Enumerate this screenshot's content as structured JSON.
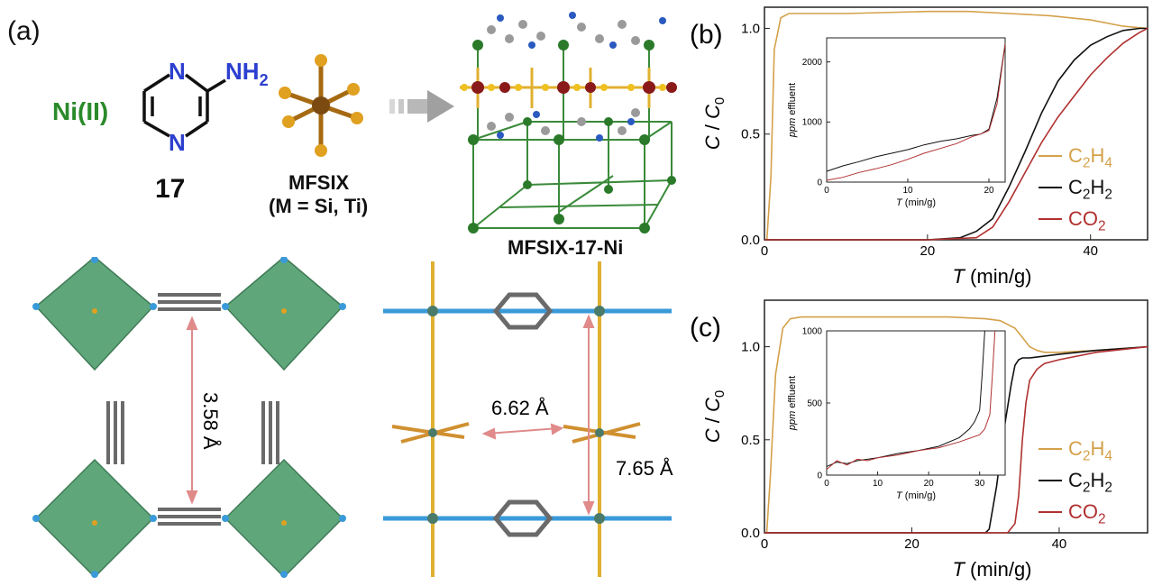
{
  "panels": {
    "a": "(a)",
    "b": "(b)",
    "c": "(c)"
  },
  "scheme": {
    "metal": "Ni(II)",
    "ligand_number": "17",
    "anion_name": "MFSIX",
    "anion_variants": "(M = Si, Ti)",
    "framework_name": "MFSIX-17-Ni",
    "ligand_n_label": "N",
    "ligand_nh2_label": "NH",
    "ligand_nh2_sub": "2"
  },
  "structure_labels": {
    "distance_1": "3.58 Å",
    "distance_2": "6.62 Å",
    "distance_3": "7.65 Å"
  },
  "colors": {
    "c2h4": "#d4a14a",
    "c2h2": "#111111",
    "co2": "#b03030",
    "nickel_green": "#2a8a2a",
    "octahedron": "#5fa77a",
    "node_blue": "#3a9ad9",
    "pink_arrow": "#e08a8a"
  },
  "chart_data": [
    {
      "panel": "(b)",
      "type": "line",
      "xlabel": "T (min/g)",
      "ylabel": "C / C0",
      "xlim": [
        0,
        47
      ],
      "ylim": [
        0,
        1.1
      ],
      "xticks": [
        0,
        20,
        40
      ],
      "yticks": [
        0.0,
        0.5,
        1.0
      ],
      "series": [
        {
          "name": "C2H4",
          "x": [
            0.3,
            0.8,
            1.2,
            2.0,
            3,
            10,
            20,
            25,
            30,
            35,
            40,
            44,
            47
          ],
          "y": [
            0,
            0.3,
            0.9,
            1.05,
            1.07,
            1.07,
            1.08,
            1.08,
            1.07,
            1.06,
            1.04,
            1.01,
            1.0
          ]
        },
        {
          "name": "C2H2",
          "x": [
            0,
            20,
            24,
            26,
            28,
            30,
            32,
            34,
            36,
            38,
            40,
            42,
            44,
            46,
            47
          ],
          "y": [
            0,
            0,
            0.01,
            0.04,
            0.1,
            0.25,
            0.42,
            0.6,
            0.75,
            0.85,
            0.92,
            0.96,
            0.99,
            1.0,
            1.0
          ]
        },
        {
          "name": "CO2",
          "x": [
            0,
            20,
            26,
            28,
            30,
            32,
            34,
            36,
            38,
            40,
            42,
            44,
            46,
            47
          ],
          "y": [
            0,
            0,
            0.01,
            0.06,
            0.18,
            0.32,
            0.46,
            0.58,
            0.68,
            0.78,
            0.86,
            0.93,
            0.98,
            1.0
          ]
        }
      ],
      "inset": {
        "xlabel": "T (min/g)",
        "ylabel": "ppm effluent",
        "xlim": [
          0,
          22
        ],
        "ylim": [
          0,
          2400
        ],
        "xticks": [
          0,
          10,
          20
        ],
        "yticks": [
          0,
          1000,
          2000
        ],
        "series": [
          {
            "name": "C2H2",
            "x": [
              0,
              2,
              4,
              6,
              8,
              10,
              12,
              14,
              16,
              18,
              19,
              20,
              21,
              22
            ],
            "y": [
              180,
              270,
              340,
              420,
              480,
              540,
              620,
              680,
              720,
              780,
              800,
              880,
              1400,
              2300
            ]
          },
          {
            "name": "CO2",
            "x": [
              0,
              2,
              4,
              6,
              8,
              10,
              12,
              14,
              16,
              18,
              19,
              20,
              21,
              22
            ],
            "y": [
              30,
              80,
              160,
              220,
              290,
              380,
              480,
              560,
              640,
              760,
              800,
              860,
              1300,
              2300
            ]
          }
        ]
      }
    },
    {
      "panel": "(c)",
      "type": "line",
      "xlabel": "T (min/g)",
      "ylabel": "C / C0",
      "xlim": [
        0,
        52
      ],
      "ylim": [
        0,
        1.25
      ],
      "xticks": [
        0,
        20,
        40
      ],
      "yticks": [
        0.0,
        0.5,
        1.0
      ],
      "series": [
        {
          "name": "C2H4",
          "x": [
            0.3,
            0.8,
            1.5,
            2.5,
            3.5,
            5,
            15,
            25,
            30,
            32,
            34,
            35,
            36,
            37,
            38,
            40,
            45,
            52
          ],
          "y": [
            0,
            0.3,
            0.85,
            1.1,
            1.15,
            1.16,
            1.16,
            1.16,
            1.15,
            1.14,
            1.1,
            1.05,
            1.0,
            0.98,
            0.97,
            0.97,
            0.98,
            1.0
          ]
        },
        {
          "name": "C2H2",
          "x": [
            0,
            30,
            30.5,
            31.5,
            32.5,
            33.5,
            34,
            34.5,
            35,
            36,
            40,
            45,
            52
          ],
          "y": [
            0,
            0,
            0.02,
            0.25,
            0.55,
            0.8,
            0.9,
            0.93,
            0.94,
            0.94,
            0.96,
            0.98,
            1.0
          ]
        },
        {
          "name": "CO2",
          "x": [
            0,
            33,
            34,
            34.5,
            35,
            35.5,
            36,
            37,
            38,
            40,
            45,
            52
          ],
          "y": [
            0,
            0,
            0.05,
            0.2,
            0.5,
            0.7,
            0.82,
            0.88,
            0.91,
            0.93,
            0.97,
            1.0
          ]
        }
      ],
      "inset": {
        "xlabel": "T (min/g)",
        "ylabel": "ppm effluent",
        "xlim": [
          0,
          35
        ],
        "ylim": [
          0,
          1000
        ],
        "xticks": [
          0,
          10,
          20,
          30
        ],
        "yticks": [
          0,
          500,
          1000
        ],
        "series": [
          {
            "name": "C2H2",
            "x": [
              0,
              2,
              4,
              6,
              8,
              10,
              14,
              18,
              22,
              26,
              28,
              29,
              30,
              30.5,
              31
            ],
            "y": [
              60,
              90,
              80,
              100,
              110,
              120,
              150,
              170,
              200,
              260,
              320,
              370,
              450,
              700,
              1000
            ]
          },
          {
            "name": "CO2",
            "x": [
              0,
              2,
              4,
              6,
              8,
              10,
              14,
              18,
              22,
              26,
              30,
              31,
              32,
              32.5,
              33
            ],
            "y": [
              40,
              100,
              70,
              110,
              100,
              120,
              140,
              170,
              190,
              230,
              280,
              320,
              420,
              700,
              1000
            ]
          }
        ]
      }
    }
  ]
}
